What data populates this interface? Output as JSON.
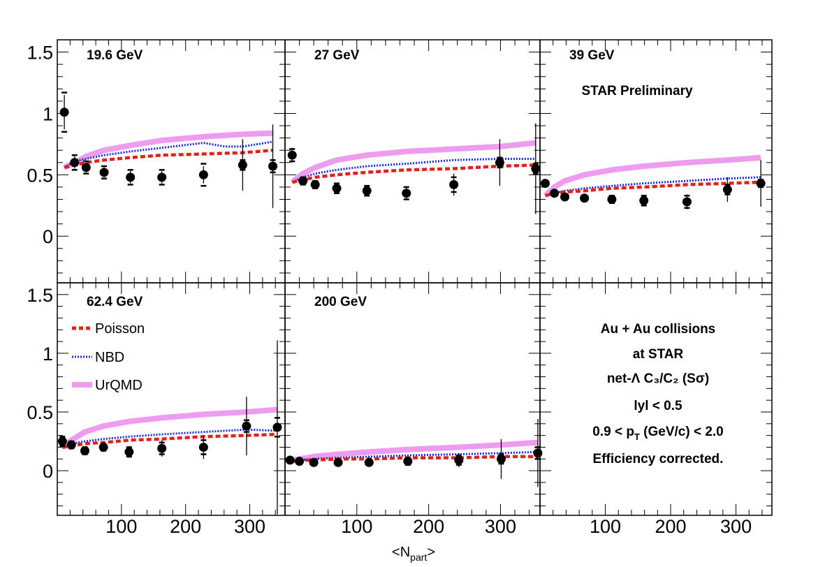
{
  "chart_data": {
    "type": "scatter",
    "xlabel": "<N",
    "xlabel_sub": "part",
    "xlabel_end": ">",
    "x_ticks": [
      100,
      200,
      300
    ],
    "y_ticks": [
      "0",
      "0.5",
      "1",
      "1.5"
    ],
    "y_tick_values": [
      0,
      0.5,
      1,
      1.5
    ],
    "ylim": [
      -0.38,
      1.6
    ],
    "xlim": [
      0,
      355
    ],
    "preliminary_label": "STAR Preliminary",
    "colors": {
      "Poisson": "#e0221b",
      "NBD": "#1a2ad6",
      "UrQMD": "#ee9cf0",
      "data": "#000000"
    },
    "legend": [
      "Poisson",
      "NBD",
      "UrQMD"
    ],
    "info": [
      "Au + Au collisions",
      "at STAR",
      "net-Λ C₃/C₂ (Sσ)",
      "lyl < 0.5",
      "0.9 < p",
      "T",
      " (GeV/c) < 2.0",
      "Efficiency corrected."
    ],
    "panels": [
      {
        "label": "19.6 GeV",
        "points": [
          {
            "x": 11,
            "y": 1.01,
            "err": 0.14,
            "sys": 0.16
          },
          {
            "x": 27,
            "y": 0.6,
            "err": 0.05,
            "sys": 0.06
          },
          {
            "x": 45,
            "y": 0.56,
            "err": 0.04,
            "sys": 0.05
          },
          {
            "x": 73,
            "y": 0.52,
            "err": 0.04,
            "sys": 0.05
          },
          {
            "x": 114,
            "y": 0.48,
            "err": 0.05,
            "sys": 0.06
          },
          {
            "x": 163,
            "y": 0.48,
            "err": 0.05,
            "sys": 0.06
          },
          {
            "x": 228,
            "y": 0.5,
            "err": 0.07,
            "sys": 0.09
          },
          {
            "x": 289,
            "y": 0.58,
            "err": 0.21,
            "sys": 0.04
          },
          {
            "x": 336,
            "y": 0.57,
            "err": 0.34,
            "sys": 0.05
          }
        ],
        "poisson": {
          "x": [
            11,
            27,
            45,
            73,
            114,
            163,
            228,
            289,
            336
          ],
          "y": [
            0.56,
            0.58,
            0.6,
            0.62,
            0.64,
            0.66,
            0.67,
            0.68,
            0.7
          ]
        },
        "nbd": {
          "x": [
            11,
            27,
            45,
            73,
            114,
            163,
            228,
            262,
            289,
            336
          ],
          "y": [
            0.56,
            0.61,
            0.63,
            0.66,
            0.69,
            0.72,
            0.76,
            0.73,
            0.73,
            0.77
          ]
        },
        "urqmd": {
          "x": [
            11,
            27,
            45,
            73,
            114,
            163,
            228,
            289,
            336
          ],
          "y": [
            0.56,
            0.6,
            0.65,
            0.7,
            0.74,
            0.78,
            0.81,
            0.83,
            0.84
          ]
        }
      },
      {
        "label": "27 GeV",
        "points": [
          {
            "x": 10,
            "y": 0.66,
            "err": 0.06,
            "sys": 0.05
          },
          {
            "x": 25,
            "y": 0.45,
            "err": 0.03,
            "sys": 0.03
          },
          {
            "x": 42,
            "y": 0.42,
            "err": 0.03,
            "sys": 0.03
          },
          {
            "x": 72,
            "y": 0.39,
            "err": 0.04,
            "sys": 0.04
          },
          {
            "x": 114,
            "y": 0.37,
            "err": 0.04,
            "sys": 0.04
          },
          {
            "x": 169,
            "y": 0.35,
            "err": 0.05,
            "sys": 0.05
          },
          {
            "x": 235,
            "y": 0.42,
            "err": 0.09,
            "sys": 0.06
          },
          {
            "x": 299,
            "y": 0.6,
            "err": 0.19,
            "sys": 0.04
          },
          {
            "x": 349,
            "y": 0.55,
            "err": 0.37,
            "sys": 0.04
          }
        ],
        "poisson": {
          "x": [
            10,
            25,
            42,
            72,
            114,
            169,
            235,
            299,
            349
          ],
          "y": [
            0.44,
            0.46,
            0.48,
            0.5,
            0.52,
            0.54,
            0.55,
            0.57,
            0.58
          ]
        },
        "nbd": {
          "x": [
            10,
            25,
            42,
            72,
            114,
            169,
            235,
            299,
            349
          ],
          "y": [
            0.44,
            0.48,
            0.51,
            0.54,
            0.57,
            0.59,
            0.62,
            0.63,
            0.63
          ]
        },
        "urqmd": {
          "x": [
            10,
            25,
            42,
            72,
            114,
            169,
            235,
            299,
            349
          ],
          "y": [
            0.44,
            0.51,
            0.56,
            0.62,
            0.66,
            0.69,
            0.71,
            0.73,
            0.76
          ]
        }
      },
      {
        "label": "39 GeV",
        "points": [
          {
            "x": 8,
            "y": 0.43,
            "err": 0.02,
            "sys": 0.02
          },
          {
            "x": 22,
            "y": 0.35,
            "err": 0.02,
            "sys": 0.02
          },
          {
            "x": 38,
            "y": 0.32,
            "err": 0.02,
            "sys": 0.02
          },
          {
            "x": 68,
            "y": 0.31,
            "err": 0.02,
            "sys": 0.02
          },
          {
            "x": 110,
            "y": 0.3,
            "err": 0.03,
            "sys": 0.03
          },
          {
            "x": 159,
            "y": 0.29,
            "err": 0.04,
            "sys": 0.04
          },
          {
            "x": 225,
            "y": 0.28,
            "err": 0.06,
            "sys": 0.05
          },
          {
            "x": 287,
            "y": 0.38,
            "err": 0.1,
            "sys": 0.04
          },
          {
            "x": 338,
            "y": 0.43,
            "err": 0.19,
            "sys": 0.03
          }
        ],
        "poisson": {
          "x": [
            8,
            22,
            38,
            68,
            110,
            159,
            225,
            287,
            338
          ],
          "y": [
            0.33,
            0.35,
            0.36,
            0.37,
            0.39,
            0.4,
            0.42,
            0.43,
            0.44
          ]
        },
        "nbd": {
          "x": [
            8,
            22,
            38,
            68,
            110,
            159,
            225,
            287,
            338
          ],
          "y": [
            0.33,
            0.35,
            0.37,
            0.39,
            0.41,
            0.43,
            0.45,
            0.47,
            0.48
          ]
        },
        "urqmd": {
          "x": [
            8,
            22,
            38,
            68,
            110,
            159,
            225,
            287,
            338
          ],
          "y": [
            0.33,
            0.4,
            0.45,
            0.5,
            0.54,
            0.57,
            0.6,
            0.62,
            0.64
          ]
        }
      },
      {
        "label": "62.4 GeV",
        "points": [
          {
            "x": 8,
            "y": 0.25,
            "err": 0.05,
            "sys": 0.04
          },
          {
            "x": 22,
            "y": 0.22,
            "err": 0.04,
            "sys": 0.03
          },
          {
            "x": 43,
            "y": 0.17,
            "err": 0.03,
            "sys": 0.03
          },
          {
            "x": 72,
            "y": 0.2,
            "err": 0.04,
            "sys": 0.03
          },
          {
            "x": 112,
            "y": 0.16,
            "err": 0.05,
            "sys": 0.04
          },
          {
            "x": 163,
            "y": 0.19,
            "err": 0.07,
            "sys": 0.05
          },
          {
            "x": 228,
            "y": 0.2,
            "err": 0.1,
            "sys": 0.06
          },
          {
            "x": 295,
            "y": 0.38,
            "err": 0.25,
            "sys": 0.05
          },
          {
            "x": 343,
            "y": 0.37,
            "err": 0.74,
            "sys": 0.08
          }
        ],
        "poisson": {
          "x": [
            8,
            22,
            43,
            72,
            112,
            163,
            228,
            295,
            343
          ],
          "y": [
            0.2,
            0.21,
            0.23,
            0.24,
            0.26,
            0.27,
            0.29,
            0.3,
            0.31
          ]
        },
        "nbd": {
          "x": [
            8,
            22,
            43,
            72,
            112,
            163,
            228,
            295,
            343
          ],
          "y": [
            0.2,
            0.23,
            0.25,
            0.27,
            0.29,
            0.31,
            0.33,
            0.35,
            0.34
          ]
        },
        "urqmd": {
          "x": [
            8,
            22,
            43,
            72,
            112,
            163,
            228,
            295,
            343
          ],
          "y": [
            0.2,
            0.26,
            0.33,
            0.38,
            0.42,
            0.45,
            0.48,
            0.5,
            0.52
          ]
        }
      },
      {
        "label": "200 GeV",
        "points": [
          {
            "x": 7,
            "y": 0.09,
            "err": 0.02,
            "sys": 0.02
          },
          {
            "x": 20,
            "y": 0.08,
            "err": 0.02,
            "sys": 0.02
          },
          {
            "x": 40,
            "y": 0.07,
            "err": 0.02,
            "sys": 0.02
          },
          {
            "x": 74,
            "y": 0.07,
            "err": 0.02,
            "sys": 0.02
          },
          {
            "x": 117,
            "y": 0.07,
            "err": 0.03,
            "sys": 0.02
          },
          {
            "x": 171,
            "y": 0.08,
            "err": 0.04,
            "sys": 0.03
          },
          {
            "x": 242,
            "y": 0.09,
            "err": 0.06,
            "sys": 0.04
          },
          {
            "x": 301,
            "y": 0.1,
            "err": 0.17,
            "sys": 0.04
          },
          {
            "x": 352,
            "y": 0.15,
            "err": 0.29,
            "sys": 0.05
          }
        ],
        "poisson": {
          "x": [
            7,
            20,
            40,
            74,
            117,
            171,
            242,
            301,
            352
          ],
          "y": [
            0.08,
            0.09,
            0.09,
            0.1,
            0.1,
            0.11,
            0.11,
            0.12,
            0.12
          ]
        },
        "nbd": {
          "x": [
            7,
            20,
            40,
            74,
            117,
            171,
            242,
            301,
            352
          ],
          "y": [
            0.08,
            0.09,
            0.1,
            0.11,
            0.12,
            0.13,
            0.14,
            0.15,
            0.16
          ]
        },
        "urqmd": {
          "x": [
            7,
            20,
            40,
            74,
            117,
            171,
            242,
            301,
            352
          ],
          "y": [
            0.08,
            0.1,
            0.12,
            0.14,
            0.16,
            0.18,
            0.2,
            0.22,
            0.24
          ]
        }
      }
    ]
  }
}
